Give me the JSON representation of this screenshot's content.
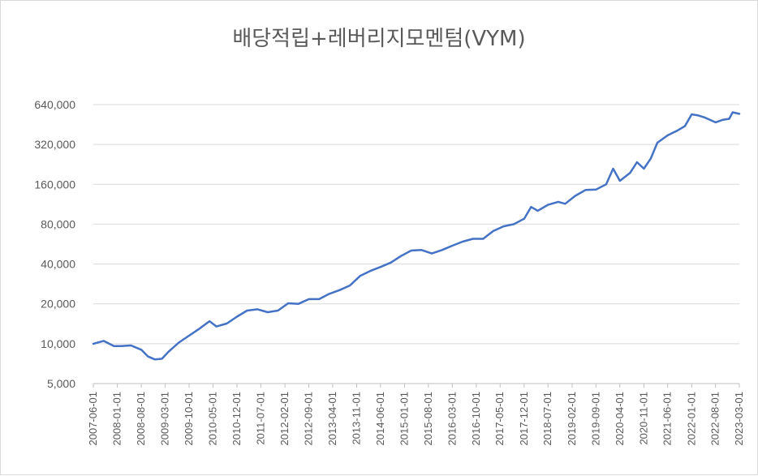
{
  "chart_data": {
    "type": "line",
    "title": "배당적립+레버리지모멘텀(VYM)",
    "yscale": "log",
    "ylim": [
      5000,
      640000
    ],
    "yticks": [
      5000,
      10000,
      20000,
      40000,
      80000,
      160000,
      320000,
      640000
    ],
    "ytick_labels": [
      "5,000",
      "10,000",
      "20,000",
      "40,000",
      "80,000",
      "160,000",
      "320,000",
      "640,000"
    ],
    "grid": "horizontal",
    "legend": "none",
    "line_color": "#4472c4",
    "x_tick_labels": [
      "2007-06-01",
      "2008-01-01",
      "2008-08-01",
      "2009-03-01",
      "2009-10-01",
      "2010-05-01",
      "2010-12-01",
      "2011-07-01",
      "2012-02-01",
      "2012-09-01",
      "2013-04-01",
      "2013-11-01",
      "2014-06-01",
      "2015-01-01",
      "2015-08-01",
      "2016-03-01",
      "2016-10-01",
      "2017-05-01",
      "2017-12-01",
      "2018-07-01",
      "2019-02-01",
      "2019-09-01",
      "2020-04-01",
      "2020-11-01",
      "2021-06-01",
      "2022-01-01",
      "2022-08-01",
      "2023-03-01"
    ],
    "series": [
      {
        "points": [
          [
            "2007-06-01",
            10000
          ],
          [
            "2007-09-01",
            10500
          ],
          [
            "2007-12-01",
            9600
          ],
          [
            "2008-02-01",
            9600
          ],
          [
            "2008-05-01",
            9700
          ],
          [
            "2008-08-01",
            9000
          ],
          [
            "2008-10-01",
            8000
          ],
          [
            "2008-12-01",
            7600
          ],
          [
            "2009-02-01",
            7700
          ],
          [
            "2009-04-01",
            8700
          ],
          [
            "2009-07-01",
            10200
          ],
          [
            "2009-10-01",
            11500
          ],
          [
            "2010-01-01",
            13000
          ],
          [
            "2010-04-01",
            14800
          ],
          [
            "2010-06-01",
            13500
          ],
          [
            "2010-09-01",
            14200
          ],
          [
            "2010-12-01",
            16000
          ],
          [
            "2011-03-01",
            17800
          ],
          [
            "2011-06-01",
            18200
          ],
          [
            "2011-09-01",
            17300
          ],
          [
            "2011-12-01",
            17800
          ],
          [
            "2012-03-01",
            20200
          ],
          [
            "2012-06-01",
            20000
          ],
          [
            "2012-09-01",
            21700
          ],
          [
            "2012-12-01",
            21700
          ],
          [
            "2013-03-01",
            23800
          ],
          [
            "2013-06-01",
            25400
          ],
          [
            "2013-09-01",
            27500
          ],
          [
            "2013-12-01",
            32500
          ],
          [
            "2014-03-01",
            35400
          ],
          [
            "2014-06-01",
            38000
          ],
          [
            "2014-09-01",
            41000
          ],
          [
            "2014-12-01",
            46000
          ],
          [
            "2015-03-01",
            50500
          ],
          [
            "2015-06-01",
            51000
          ],
          [
            "2015-09-01",
            48000
          ],
          [
            "2015-12-01",
            51000
          ],
          [
            "2016-03-01",
            55000
          ],
          [
            "2016-06-01",
            59000
          ],
          [
            "2016-09-01",
            62000
          ],
          [
            "2016-12-01",
            62000
          ],
          [
            "2017-03-01",
            71000
          ],
          [
            "2017-06-01",
            77000
          ],
          [
            "2017-09-01",
            80000
          ],
          [
            "2017-12-01",
            88000
          ],
          [
            "2018-02-01",
            108000
          ],
          [
            "2018-04-01",
            101000
          ],
          [
            "2018-07-01",
            112000
          ],
          [
            "2018-10-01",
            118000
          ],
          [
            "2018-12-01",
            114000
          ],
          [
            "2019-03-01",
            131000
          ],
          [
            "2019-06-01",
            145000
          ],
          [
            "2019-09-01",
            146000
          ],
          [
            "2019-12-01",
            160000
          ],
          [
            "2020-02-01",
            210000
          ],
          [
            "2020-04-01",
            170000
          ],
          [
            "2020-07-01",
            195000
          ],
          [
            "2020-09-01",
            235000
          ],
          [
            "2020-11-01",
            210000
          ],
          [
            "2021-01-01",
            250000
          ],
          [
            "2021-03-01",
            330000
          ],
          [
            "2021-06-01",
            375000
          ],
          [
            "2021-09-01",
            410000
          ],
          [
            "2021-11-01",
            440000
          ],
          [
            "2022-01-01",
            540000
          ],
          [
            "2022-03-01",
            530000
          ],
          [
            "2022-05-01",
            510000
          ],
          [
            "2022-08-01",
            470000
          ],
          [
            "2022-10-01",
            490000
          ],
          [
            "2022-12-01",
            500000
          ],
          [
            "2023-01-01",
            560000
          ],
          [
            "2023-03-01",
            545000
          ]
        ]
      }
    ]
  }
}
